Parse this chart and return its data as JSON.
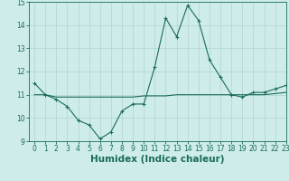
{
  "xlabel": "Humidex (Indice chaleur)",
  "x_values": [
    0,
    1,
    2,
    3,
    4,
    5,
    6,
    7,
    8,
    9,
    10,
    11,
    12,
    13,
    14,
    15,
    16,
    17,
    18,
    19,
    20,
    21,
    22,
    23
  ],
  "y_main": [
    11.5,
    11.0,
    10.8,
    10.5,
    9.9,
    9.7,
    9.1,
    9.4,
    10.3,
    10.6,
    10.6,
    12.2,
    14.3,
    13.5,
    14.85,
    14.2,
    12.5,
    11.75,
    11.0,
    10.9,
    11.1,
    11.1,
    11.25,
    11.4
  ],
  "y_trend": [
    11.0,
    11.0,
    10.9,
    10.9,
    10.9,
    10.9,
    10.9,
    10.9,
    10.9,
    10.9,
    10.95,
    10.95,
    10.95,
    11.0,
    11.0,
    11.0,
    11.0,
    11.0,
    11.0,
    11.0,
    11.0,
    11.0,
    11.05,
    11.1
  ],
  "ylim": [
    9,
    15
  ],
  "xlim": [
    -0.5,
    23
  ],
  "yticks": [
    9,
    10,
    11,
    12,
    13,
    14,
    15
  ],
  "xticks": [
    0,
    1,
    2,
    3,
    4,
    5,
    6,
    7,
    8,
    9,
    10,
    11,
    12,
    13,
    14,
    15,
    16,
    17,
    18,
    19,
    20,
    21,
    22,
    23
  ],
  "line_color": "#1a6b5a",
  "background_color": "#ceecea",
  "grid_color": "#b0d4d0",
  "tick_label_fontsize": 5.5,
  "axis_label_fontsize": 7.5
}
